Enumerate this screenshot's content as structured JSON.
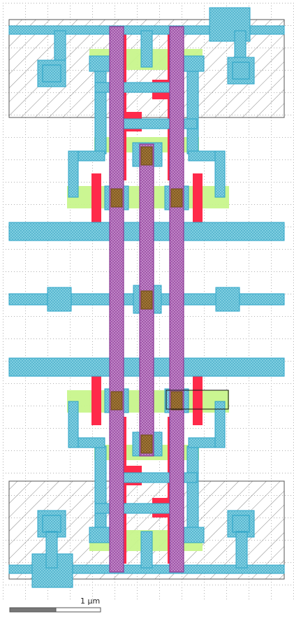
{
  "colors": {
    "background": "#ffffff",
    "grid_dot": "#b0b0b0",
    "nwell_outline": "#555555",
    "hatch": "#777777",
    "active": "#c6f58a",
    "poly": "#ff2a4a",
    "metal1": "#2fa6c8",
    "metal1_fill": "#8fd8e8",
    "metal2": "#a04aa8",
    "metal2_fill": "#c98ad0",
    "contact": "#9a4a00",
    "scalebar_dark": "#777777",
    "scalebar_light": "#ffffff"
  },
  "scale_bar": {
    "label": "1 µm"
  },
  "layers": [
    "nwell",
    "active",
    "poly",
    "metal1",
    "metal2",
    "contact"
  ]
}
